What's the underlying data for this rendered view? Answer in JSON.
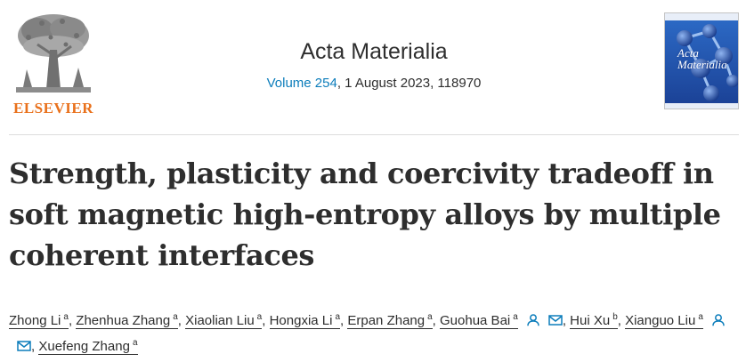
{
  "publisher": {
    "logo_text": "ELSEVIER"
  },
  "journal": {
    "title": "Acta Materialia",
    "volume_link": "Volume 254",
    "issue_rest": ", 1 August 2023, 118970",
    "cover_text_1": "Acta",
    "cover_text_2": "Materialia"
  },
  "article": {
    "title": "Strength, plasticity and coercivity tradeoff in soft magnetic high-entropy alloys by multiple coherent interfaces"
  },
  "authors": [
    {
      "name": "Zhong Li",
      "aff": "a",
      "icons": []
    },
    {
      "name": "Zhenhua Zhang",
      "aff": "a",
      "icons": []
    },
    {
      "name": "Xiaolian Liu",
      "aff": "a",
      "icons": []
    },
    {
      "name": "Hongxia Li",
      "aff": "a",
      "icons": []
    },
    {
      "name": "Erpan Zhang",
      "aff": "a",
      "icons": []
    },
    {
      "name": "Guohua Bai",
      "aff": "a",
      "icons": [
        "person-icon",
        "email-icon"
      ]
    },
    {
      "name": "Hui Xu",
      "aff": "b",
      "icons": []
    },
    {
      "name": "Xianguo Liu",
      "aff": "a",
      "icons": [
        "person-icon",
        "email-icon"
      ]
    },
    {
      "name": "Xuefeng Zhang",
      "aff": "a",
      "icons": []
    }
  ],
  "separator": ",",
  "colors": {
    "link": "#0c7dbb",
    "elsevier_orange": "#e9711c",
    "icon": "#0c7dbb",
    "text": "#2e2e2e"
  }
}
